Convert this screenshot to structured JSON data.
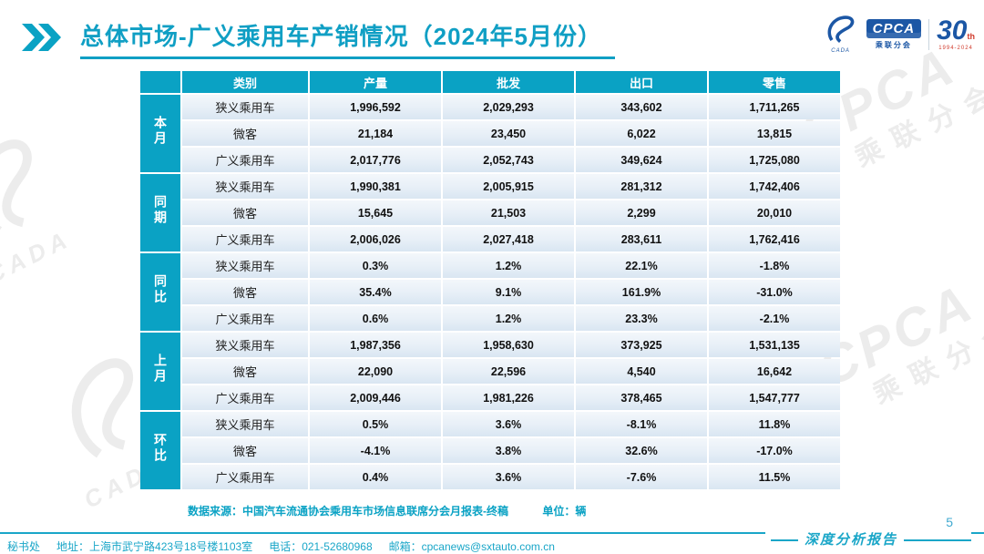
{
  "title": "总体市场-广义乘用车产销情况（2024年5月份）",
  "logos": {
    "cpca_text": "CPCA",
    "cpca_sub": "乘联分会",
    "swoosh_sub": "CADA",
    "anniv_number": "30",
    "anniv_th": "th",
    "anniv_years": "1994-2024"
  },
  "table": {
    "headers": [
      "类别",
      "产量",
      "批发",
      "出口",
      "零售"
    ],
    "groups": [
      {
        "label": "本月",
        "rows": [
          {
            "category": "狭义乘用车",
            "values": [
              "1,996,592",
              "2,029,293",
              "343,602",
              "1,711,265"
            ]
          },
          {
            "category": "微客",
            "values": [
              "21,184",
              "23,450",
              "6,022",
              "13,815"
            ]
          },
          {
            "category": "广义乘用车",
            "values": [
              "2,017,776",
              "2,052,743",
              "349,624",
              "1,725,080"
            ]
          }
        ]
      },
      {
        "label": "同期",
        "rows": [
          {
            "category": "狭义乘用车",
            "values": [
              "1,990,381",
              "2,005,915",
              "281,312",
              "1,742,406"
            ]
          },
          {
            "category": "微客",
            "values": [
              "15,645",
              "21,503",
              "2,299",
              "20,010"
            ]
          },
          {
            "category": "广义乘用车",
            "values": [
              "2,006,026",
              "2,027,418",
              "283,611",
              "1,762,416"
            ]
          }
        ]
      },
      {
        "label": "同比",
        "rows": [
          {
            "category": "狭义乘用车",
            "values": [
              "0.3%",
              "1.2%",
              "22.1%",
              "-1.8%"
            ]
          },
          {
            "category": "微客",
            "values": [
              "35.4%",
              "9.1%",
              "161.9%",
              "-31.0%"
            ]
          },
          {
            "category": "广义乘用车",
            "values": [
              "0.6%",
              "1.2%",
              "23.3%",
              "-2.1%"
            ]
          }
        ]
      },
      {
        "label": "上月",
        "rows": [
          {
            "category": "狭义乘用车",
            "values": [
              "1,987,356",
              "1,958,630",
              "373,925",
              "1,531,135"
            ]
          },
          {
            "category": "微客",
            "values": [
              "22,090",
              "22,596",
              "4,540",
              "16,642"
            ]
          },
          {
            "category": "广义乘用车",
            "values": [
              "2,009,446",
              "1,981,226",
              "378,465",
              "1,547,777"
            ]
          }
        ]
      },
      {
        "label": "环比",
        "rows": [
          {
            "category": "狭义乘用车",
            "values": [
              "0.5%",
              "3.6%",
              "-8.1%",
              "11.8%"
            ]
          },
          {
            "category": "微客",
            "values": [
              "-4.1%",
              "3.8%",
              "32.6%",
              "-17.0%"
            ]
          },
          {
            "category": "广义乘用车",
            "values": [
              "0.4%",
              "3.6%",
              "-7.6%",
              "11.5%"
            ]
          }
        ]
      }
    ],
    "source_note": "数据来源：中国汽车流通协会乘用车市场信息联席分会月报表-终稿",
    "unit_note": "单位：辆"
  },
  "footer": {
    "secretariat": "秘书处",
    "address": "地址：上海市武宁路423号18号楼1103室",
    "phone": "电话：021-52680968",
    "email": "邮箱：cpcanews@sxtauto.com.cn",
    "report_label": "深度分析报告",
    "page_number": "5"
  },
  "watermark": {
    "big": "CPCA",
    "sub": "乘联分会",
    "cada": "CADA"
  },
  "colors": {
    "teal": "#0aa2c4",
    "title_teal": "#109fc4",
    "logo_blue": "#1c57a5",
    "accent_red": "#d03a2b"
  }
}
